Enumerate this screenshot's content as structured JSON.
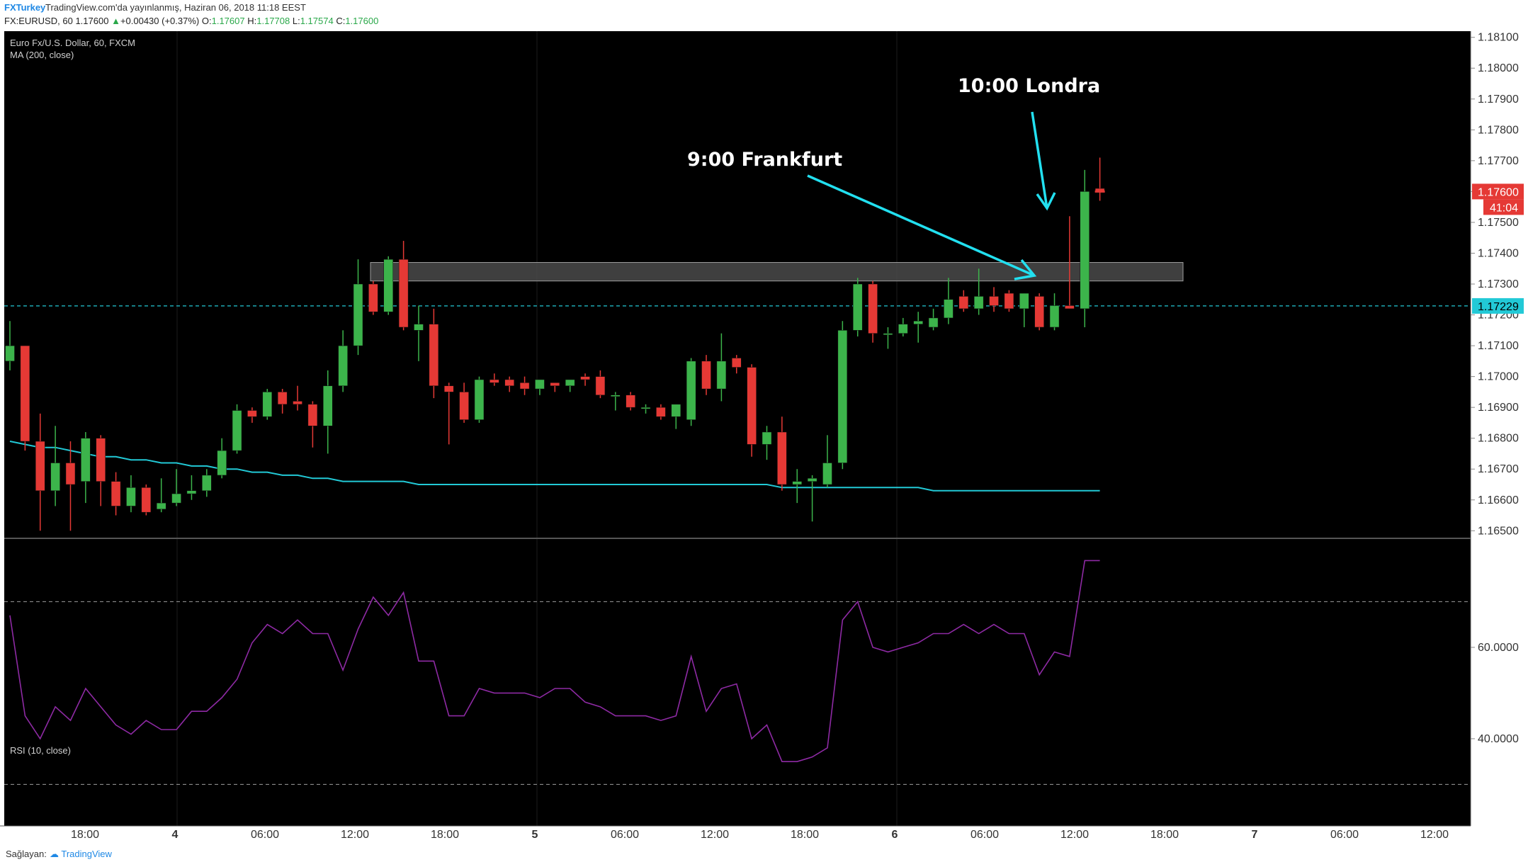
{
  "header": {
    "brand": "FXTurkey",
    "published": "TradingView.com'da yayınlanmış, Haziran 06, 2018 11:18 EEST",
    "symbol": "FX:EURUSD, 60",
    "last": "1.17600",
    "change": "+0.00430 (+0.37%)",
    "open_label": "O:",
    "open": "1.17607",
    "high_label": "H:",
    "high": "1.17708",
    "low_label": "L:",
    "low": "1.17574",
    "close_label": "C:",
    "close": "1.17600"
  },
  "footer": {
    "provider": "Sağlayan:",
    "logo_text": "TradingView"
  },
  "colors": {
    "background": "#000000",
    "up": "#3cb44b",
    "down": "#e53935",
    "ma": "#22c9d6",
    "rsi": "#8e2aa4",
    "annotation": "#22e0f0",
    "price_tag": "#e53935",
    "ref_tag": "#22c9d6"
  },
  "chart_data": {
    "type": "candlestick",
    "title": "Euro Fx/U.S. Dollar, 60, FXCM",
    "indicator": "MA (200, close)",
    "ylim": [
      1.1648,
      1.1812
    ],
    "y_ticks": [
      "1.18100",
      "1.18000",
      "1.17900",
      "1.17800",
      "1.17700",
      "1.17600",
      "1.17500",
      "1.17400",
      "1.17300",
      "1.17200",
      "1.17100",
      "1.17000",
      "1.16900",
      "1.16800",
      "1.16700",
      "1.16600",
      "1.16500"
    ],
    "x_ticks": [
      "18:00",
      "4",
      "06:00",
      "12:00",
      "18:00",
      "5",
      "06:00",
      "12:00",
      "18:00",
      "6",
      "06:00",
      "12:00",
      "18:00",
      "7",
      "06:00",
      "12:00"
    ],
    "candles": [
      {
        "o": 1.1705,
        "h": 1.1718,
        "l": 1.1702,
        "c": 1.171
      },
      {
        "o": 1.171,
        "h": 1.171,
        "l": 1.1676,
        "c": 1.1679
      },
      {
        "o": 1.1679,
        "h": 1.1688,
        "l": 1.165,
        "c": 1.1663
      },
      {
        "o": 1.1663,
        "h": 1.1684,
        "l": 1.1658,
        "c": 1.1672
      },
      {
        "o": 1.1672,
        "h": 1.1679,
        "l": 1.165,
        "c": 1.1665
      },
      {
        "o": 1.1666,
        "h": 1.1682,
        "l": 1.1659,
        "c": 1.168
      },
      {
        "o": 1.168,
        "h": 1.1681,
        "l": 1.1658,
        "c": 1.1666
      },
      {
        "o": 1.1666,
        "h": 1.1669,
        "l": 1.1655,
        "c": 1.1658
      },
      {
        "o": 1.1658,
        "h": 1.1668,
        "l": 1.1656,
        "c": 1.1664
      },
      {
        "o": 1.1664,
        "h": 1.1665,
        "l": 1.1655,
        "c": 1.1656
      },
      {
        "o": 1.1657,
        "h": 1.1667,
        "l": 1.1656,
        "c": 1.1659
      },
      {
        "o": 1.1659,
        "h": 1.167,
        "l": 1.1658,
        "c": 1.1662
      },
      {
        "o": 1.1662,
        "h": 1.1668,
        "l": 1.166,
        "c": 1.1663
      },
      {
        "o": 1.1663,
        "h": 1.167,
        "l": 1.1661,
        "c": 1.1668
      },
      {
        "o": 1.1668,
        "h": 1.168,
        "l": 1.1667,
        "c": 1.1676
      },
      {
        "o": 1.1676,
        "h": 1.1691,
        "l": 1.1675,
        "c": 1.1689
      },
      {
        "o": 1.1689,
        "h": 1.169,
        "l": 1.1685,
        "c": 1.1687
      },
      {
        "o": 1.1687,
        "h": 1.1696,
        "l": 1.1686,
        "c": 1.1695
      },
      {
        "o": 1.1695,
        "h": 1.1696,
        "l": 1.1688,
        "c": 1.1691
      },
      {
        "o": 1.1692,
        "h": 1.1697,
        "l": 1.1689,
        "c": 1.1691
      },
      {
        "o": 1.1691,
        "h": 1.1692,
        "l": 1.1677,
        "c": 1.1684
      },
      {
        "o": 1.1684,
        "h": 1.1702,
        "l": 1.1675,
        "c": 1.1697
      },
      {
        "o": 1.1697,
        "h": 1.1715,
        "l": 1.1695,
        "c": 1.171
      },
      {
        "o": 1.171,
        "h": 1.1738,
        "l": 1.1707,
        "c": 1.173
      },
      {
        "o": 1.173,
        "h": 1.1731,
        "l": 1.172,
        "c": 1.1721
      },
      {
        "o": 1.1721,
        "h": 1.1739,
        "l": 1.172,
        "c": 1.1738
      },
      {
        "o": 1.1738,
        "h": 1.1744,
        "l": 1.1715,
        "c": 1.1716
      },
      {
        "o": 1.1715,
        "h": 1.1723,
        "l": 1.1705,
        "c": 1.1717
      },
      {
        "o": 1.1717,
        "h": 1.1722,
        "l": 1.1693,
        "c": 1.1697
      },
      {
        "o": 1.1697,
        "h": 1.1698,
        "l": 1.1678,
        "c": 1.1695
      },
      {
        "o": 1.1695,
        "h": 1.1698,
        "l": 1.1685,
        "c": 1.1686
      },
      {
        "o": 1.1686,
        "h": 1.17,
        "l": 1.1685,
        "c": 1.1699
      },
      {
        "o": 1.1699,
        "h": 1.1701,
        "l": 1.1697,
        "c": 1.1698
      },
      {
        "o": 1.1699,
        "h": 1.17,
        "l": 1.1695,
        "c": 1.1697
      },
      {
        "o": 1.1698,
        "h": 1.17,
        "l": 1.1694,
        "c": 1.1696
      },
      {
        "o": 1.1696,
        "h": 1.1698,
        "l": 1.1694,
        "c": 1.1699
      },
      {
        "o": 1.1698,
        "h": 1.1698,
        "l": 1.1695,
        "c": 1.1697
      },
      {
        "o": 1.1697,
        "h": 1.1699,
        "l": 1.1695,
        "c": 1.1699
      },
      {
        "o": 1.17,
        "h": 1.1701,
        "l": 1.1697,
        "c": 1.1699
      },
      {
        "o": 1.17,
        "h": 1.1702,
        "l": 1.1693,
        "c": 1.1694
      },
      {
        "o": 1.1694,
        "h": 1.1695,
        "l": 1.1689,
        "c": 1.1694
      },
      {
        "o": 1.1694,
        "h": 1.1695,
        "l": 1.1689,
        "c": 1.169
      },
      {
        "o": 1.169,
        "h": 1.1691,
        "l": 1.1688,
        "c": 1.169
      },
      {
        "o": 1.169,
        "h": 1.1691,
        "l": 1.1686,
        "c": 1.1687
      },
      {
        "o": 1.1687,
        "h": 1.1691,
        "l": 1.1683,
        "c": 1.1691
      },
      {
        "o": 1.1686,
        "h": 1.1706,
        "l": 1.1684,
        "c": 1.1705
      },
      {
        "o": 1.1705,
        "h": 1.1707,
        "l": 1.1694,
        "c": 1.1696
      },
      {
        "o": 1.1696,
        "h": 1.1714,
        "l": 1.1692,
        "c": 1.1705
      },
      {
        "o": 1.1706,
        "h": 1.1707,
        "l": 1.1701,
        "c": 1.1703
      },
      {
        "o": 1.1703,
        "h": 1.1704,
        "l": 1.1674,
        "c": 1.1678
      },
      {
        "o": 1.1678,
        "h": 1.1684,
        "l": 1.1673,
        "c": 1.1682
      },
      {
        "o": 1.1682,
        "h": 1.1687,
        "l": 1.1663,
        "c": 1.1665
      },
      {
        "o": 1.1665,
        "h": 1.167,
        "l": 1.1659,
        "c": 1.1666
      },
      {
        "o": 1.1666,
        "h": 1.1668,
        "l": 1.1653,
        "c": 1.1667
      },
      {
        "o": 1.1665,
        "h": 1.1681,
        "l": 1.1664,
        "c": 1.1672
      },
      {
        "o": 1.1672,
        "h": 1.1718,
        "l": 1.167,
        "c": 1.1715
      },
      {
        "o": 1.1715,
        "h": 1.1732,
        "l": 1.1713,
        "c": 1.173
      },
      {
        "o": 1.173,
        "h": 1.1731,
        "l": 1.1711,
        "c": 1.1714
      },
      {
        "o": 1.1714,
        "h": 1.1716,
        "l": 1.1709,
        "c": 1.1714
      },
      {
        "o": 1.1714,
        "h": 1.1719,
        "l": 1.1713,
        "c": 1.1717
      },
      {
        "o": 1.1717,
        "h": 1.1721,
        "l": 1.1711,
        "c": 1.1718
      },
      {
        "o": 1.1716,
        "h": 1.1722,
        "l": 1.1715,
        "c": 1.1719
      },
      {
        "o": 1.1719,
        "h": 1.1732,
        "l": 1.1717,
        "c": 1.1725
      },
      {
        "o": 1.1726,
        "h": 1.1728,
        "l": 1.1721,
        "c": 1.1722
      },
      {
        "o": 1.1722,
        "h": 1.1735,
        "l": 1.172,
        "c": 1.1726
      },
      {
        "o": 1.1726,
        "h": 1.1729,
        "l": 1.1721,
        "c": 1.1723
      },
      {
        "o": 1.1727,
        "h": 1.1728,
        "l": 1.1721,
        "c": 1.1722
      },
      {
        "o": 1.1722,
        "h": 1.1727,
        "l": 1.1716,
        "c": 1.1727
      },
      {
        "o": 1.1726,
        "h": 1.1727,
        "l": 1.1715,
        "c": 1.1716
      },
      {
        "o": 1.1716,
        "h": 1.1727,
        "l": 1.1715,
        "c": 1.1723
      },
      {
        "o": 1.1723,
        "h": 1.1752,
        "l": 1.1722,
        "c": 1.1722
      },
      {
        "o": 1.1722,
        "h": 1.1767,
        "l": 1.1716,
        "c": 1.176
      },
      {
        "o": 1.1761,
        "h": 1.1771,
        "l": 1.1757,
        "c": 1.176
      }
    ],
    "ma200": [
      1.1679,
      1.1678,
      1.1677,
      1.1677,
      1.1676,
      1.1675,
      1.1674,
      1.1674,
      1.1673,
      1.1673,
      1.1672,
      1.1672,
      1.1671,
      1.1671,
      1.167,
      1.167,
      1.1669,
      1.1669,
      1.1668,
      1.1668,
      1.1667,
      1.1667,
      1.1666,
      1.1666,
      1.1666,
      1.1666,
      1.1666,
      1.1665,
      1.1665,
      1.1665,
      1.1665,
      1.1665,
      1.1665,
      1.1665,
      1.1665,
      1.1665,
      1.1665,
      1.1665,
      1.1665,
      1.1665,
      1.1665,
      1.1665,
      1.1665,
      1.1665,
      1.1665,
      1.1665,
      1.1665,
      1.1665,
      1.1665,
      1.1665,
      1.1665,
      1.1664,
      1.1664,
      1.1664,
      1.1664,
      1.1664,
      1.1664,
      1.1664,
      1.1664,
      1.1664,
      1.1664,
      1.1663,
      1.1663,
      1.1663,
      1.1663,
      1.1663,
      1.1663,
      1.1663,
      1.1663,
      1.1663,
      1.1663,
      1.1663,
      1.1663
    ],
    "resistance_zone": [
      1.1731,
      1.1737
    ],
    "reference_price": 1.17229,
    "last_price": "1.17600",
    "countdown": "41:04",
    "reference_label": "1.17229",
    "annotations": [
      {
        "text": "9:00 Frankfurt"
      },
      {
        "text": "10:00 Londra"
      }
    ],
    "rsi": {
      "label": "RSI (10, close)",
      "ylim": [
        22,
        82
      ],
      "ticks": [
        "60.0000",
        "40.0000"
      ],
      "bands": [
        70,
        30
      ],
      "values": [
        67,
        45,
        40,
        47,
        44,
        51,
        47,
        43,
        41,
        44,
        42,
        42,
        46,
        46,
        49,
        53,
        61,
        65,
        63,
        66,
        63,
        63,
        55,
        64,
        71,
        67,
        72,
        57,
        57,
        45,
        45,
        51,
        50,
        50,
        50,
        49,
        51,
        51,
        48,
        47,
        45,
        45,
        45,
        44,
        45,
        58,
        46,
        51,
        52,
        40,
        43,
        35,
        35,
        36,
        38,
        66,
        70,
        60,
        59,
        60,
        61,
        63,
        63,
        65,
        63,
        65,
        63,
        63,
        54,
        59,
        58,
        79,
        79
      ]
    }
  }
}
